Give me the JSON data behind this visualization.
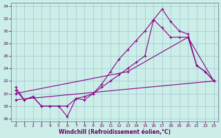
{
  "xlabel": "Windchill (Refroidissement éolien,°C)",
  "xlim": [
    -0.5,
    23.5
  ],
  "ylim": [
    15.5,
    34.5
  ],
  "xticks": [
    0,
    1,
    2,
    3,
    4,
    5,
    6,
    7,
    8,
    9,
    10,
    11,
    12,
    13,
    14,
    15,
    16,
    17,
    18,
    19,
    20,
    21,
    22,
    23
  ],
  "yticks": [
    16,
    18,
    20,
    22,
    24,
    26,
    28,
    30,
    32,
    34
  ],
  "background_color": "#cceee8",
  "grid_color": "#99bbcc",
  "line_color": "#880088",
  "line1_x": [
    0,
    1,
    2,
    3,
    4,
    5,
    6,
    7,
    8,
    9,
    10,
    11,
    12,
    13,
    14,
    15,
    16,
    17,
    18,
    19,
    20,
    21,
    22,
    23
  ],
  "line1_y": [
    21.0,
    19.0,
    19.5,
    18.0,
    18.0,
    18.0,
    16.3,
    19.2,
    19.0,
    20.0,
    21.5,
    23.5,
    25.5,
    27.0,
    28.5,
    30.0,
    31.8,
    33.5,
    31.5,
    30.0,
    29.5,
    24.5,
    23.5,
    22.0
  ],
  "line2_x": [
    0,
    1,
    2,
    3,
    4,
    5,
    6,
    7,
    8,
    9,
    10,
    11,
    12,
    13,
    14,
    15,
    16,
    17,
    18,
    19,
    20,
    21,
    22,
    23
  ],
  "line2_y": [
    20.5,
    19.0,
    19.5,
    18.0,
    18.0,
    18.0,
    18.0,
    19.2,
    19.5,
    20.0,
    21.0,
    22.0,
    23.0,
    24.0,
    25.0,
    26.0,
    31.8,
    30.5,
    29.0,
    29.0,
    29.0,
    24.5,
    23.5,
    22.0
  ],
  "line3_x": [
    0,
    23
  ],
  "line3_y": [
    19.0,
    22.0
  ],
  "line4_x": [
    0,
    13,
    20,
    23
  ],
  "line4_y": [
    20.0,
    23.5,
    29.0,
    22.0
  ]
}
